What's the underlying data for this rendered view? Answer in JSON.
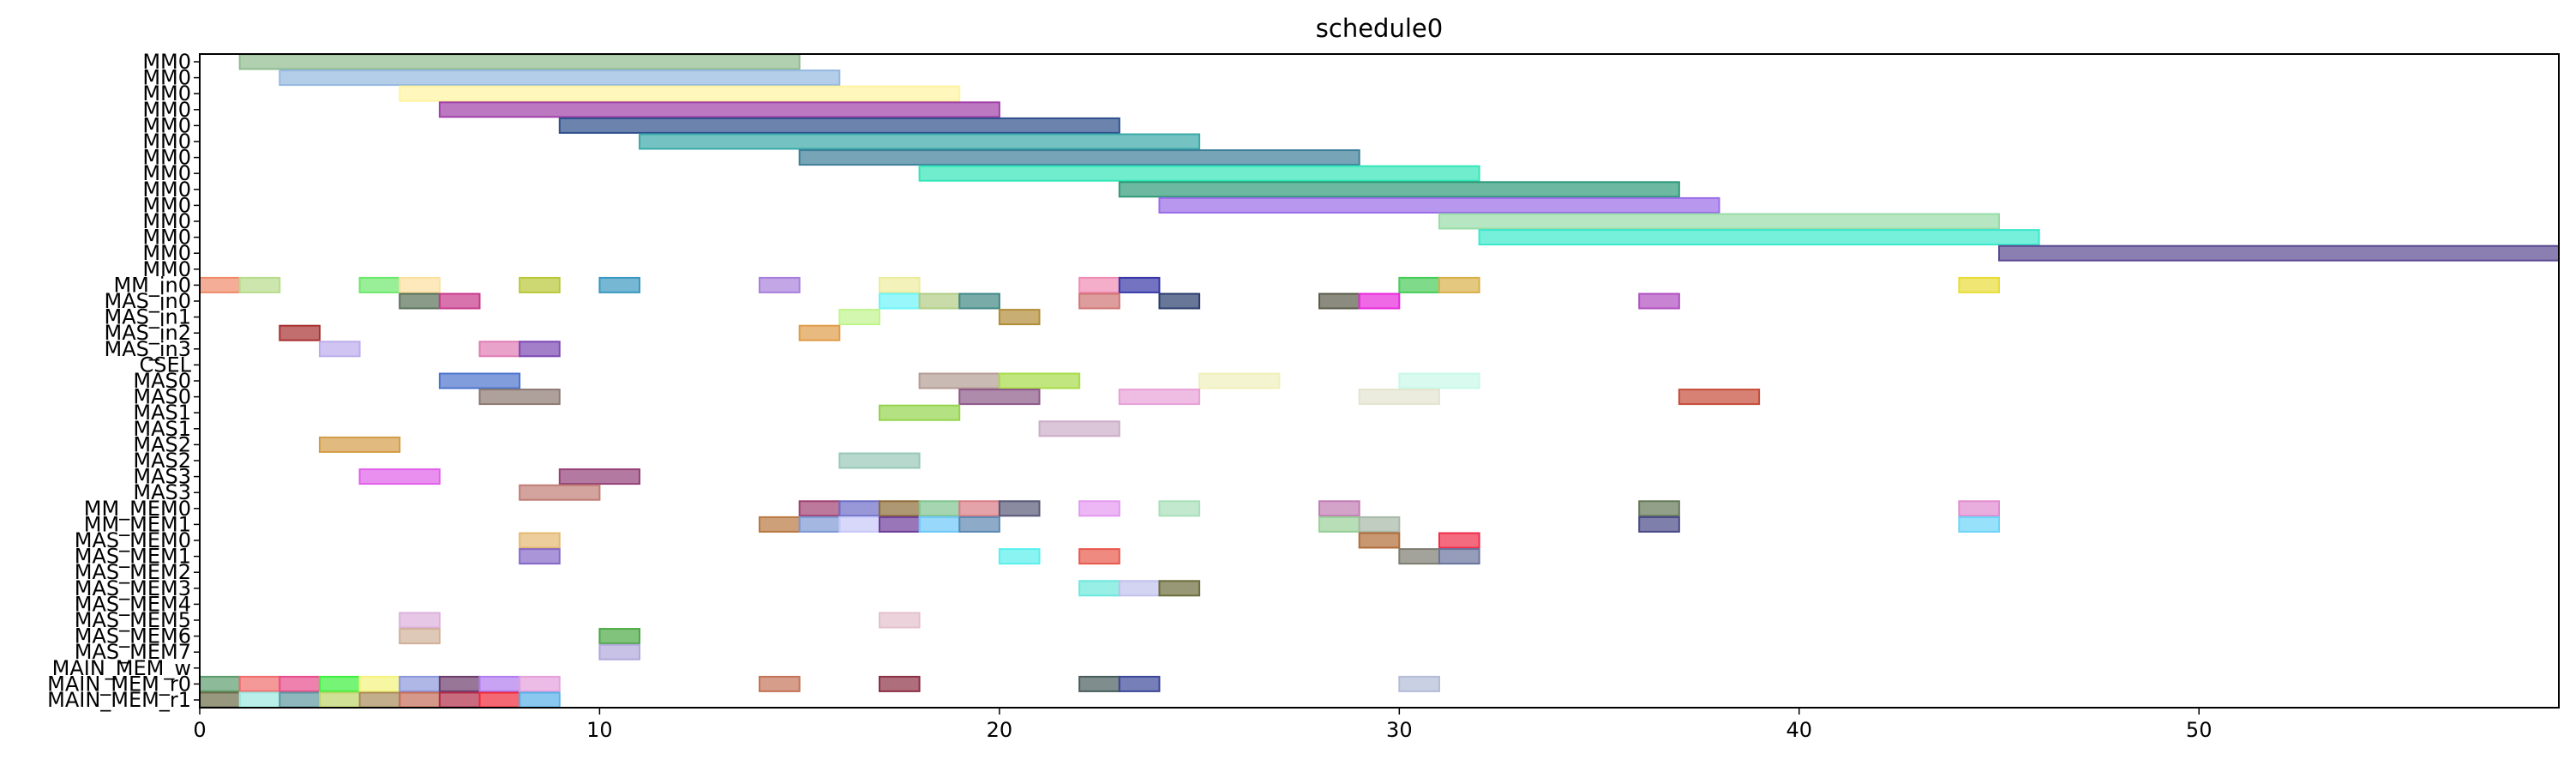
{
  "chart_data": {
    "type": "gantt",
    "title": "schedule0",
    "xlabel": "",
    "ylabel": "",
    "xlim": [
      0,
      59
    ],
    "xticks": [
      0,
      10,
      20,
      30,
      40,
      50
    ],
    "grid": false,
    "rows": [
      "MM0",
      "MM0",
      "MM0",
      "MM0",
      "MM0",
      "MM0",
      "MM0",
      "MM0",
      "MM0",
      "MM0",
      "MM0",
      "MM0",
      "MM0",
      "MM0",
      "MM_in0",
      "MAS_in0",
      "MAS_in1",
      "MAS_in2",
      "MAS_in3",
      "CSEL",
      "MAS0",
      "MAS0",
      "MAS1",
      "MAS1",
      "MAS2",
      "MAS2",
      "MAS3",
      "MAS3",
      "MM_MEM0",
      "MM_MEM1",
      "MAS_MEM0",
      "MAS_MEM1",
      "MAS_MEM2",
      "MAS_MEM3",
      "MAS_MEM4",
      "MAS_MEM5",
      "MAS_MEM6",
      "MAS_MEM7",
      "MAIN_MEM_w",
      "MAIN_MEM_r0",
      "MAIN_MEM_r1"
    ],
    "bars": [
      {
        "row": 0,
        "start": 1,
        "end": 15,
        "color": "#8fbc8f"
      },
      {
        "row": 1,
        "start": 2,
        "end": 16,
        "color": "#94b8e0"
      },
      {
        "row": 2,
        "start": 5,
        "end": 19,
        "color": "#fff3a0"
      },
      {
        "row": 3,
        "start": 6,
        "end": 20,
        "color": "#a040a8"
      },
      {
        "row": 4,
        "start": 9,
        "end": 23,
        "color": "#2d4f8c"
      },
      {
        "row": 5,
        "start": 11,
        "end": 25,
        "color": "#3aa8a8"
      },
      {
        "row": 6,
        "start": 15,
        "end": 29,
        "color": "#3d7f98"
      },
      {
        "row": 7,
        "start": 18,
        "end": 32,
        "color": "#33e6b8"
      },
      {
        "row": 8,
        "start": 23,
        "end": 37,
        "color": "#2e9a78"
      },
      {
        "row": 9,
        "start": 24,
        "end": 38,
        "color": "#9a6ce8"
      },
      {
        "row": 10,
        "start": 31,
        "end": 45,
        "color": "#98dca8"
      },
      {
        "row": 11,
        "start": 32,
        "end": 46,
        "color": "#3ce8cc"
      },
      {
        "row": 12,
        "start": 45,
        "end": 59,
        "color": "#5a4890"
      },
      {
        "row": 14,
        "start": 0,
        "end": 1,
        "color": "#f08a6a"
      },
      {
        "row": 14,
        "start": 1,
        "end": 2,
        "color": "#b8dc8c"
      },
      {
        "row": 14,
        "start": 4,
        "end": 5,
        "color": "#6ce86c"
      },
      {
        "row": 14,
        "start": 5,
        "end": 6,
        "color": "#fce0a0"
      },
      {
        "row": 14,
        "start": 8,
        "end": 9,
        "color": "#b8c838"
      },
      {
        "row": 14,
        "start": 10,
        "end": 11,
        "color": "#3c98c0"
      },
      {
        "row": 14,
        "start": 14,
        "end": 15,
        "color": "#a880dc"
      },
      {
        "row": 14,
        "start": 17,
        "end": 18,
        "color": "#ecec9c"
      },
      {
        "row": 14,
        "start": 22,
        "end": 23,
        "color": "#f08cb4"
      },
      {
        "row": 14,
        "start": 23,
        "end": 24,
        "color": "#3838a8"
      },
      {
        "row": 14,
        "start": 30,
        "end": 31,
        "color": "#48cc58"
      },
      {
        "row": 14,
        "start": 31,
        "end": 32,
        "color": "#d8b048"
      },
      {
        "row": 14,
        "start": 44,
        "end": 45,
        "color": "#e8dc38"
      },
      {
        "row": 15,
        "start": 5,
        "end": 6,
        "color": "#587058"
      },
      {
        "row": 15,
        "start": 6,
        "end": 7,
        "color": "#c8388c"
      },
      {
        "row": 15,
        "start": 17,
        "end": 18,
        "color": "#6cf4f8"
      },
      {
        "row": 15,
        "start": 18,
        "end": 19,
        "color": "#b0cc84"
      },
      {
        "row": 15,
        "start": 19,
        "end": 20,
        "color": "#408884"
      },
      {
        "row": 15,
        "start": 22,
        "end": 23,
        "color": "#d07474"
      },
      {
        "row": 15,
        "start": 24,
        "end": 25,
        "color": "#283c6c"
      },
      {
        "row": 15,
        "start": 28,
        "end": 29,
        "color": "#5a5a48"
      },
      {
        "row": 15,
        "start": 29,
        "end": 30,
        "color": "#e828dc"
      },
      {
        "row": 15,
        "start": 36,
        "end": 37,
        "color": "#b050c0"
      },
      {
        "row": 16,
        "start": 16,
        "end": 17,
        "color": "#c0f48c"
      },
      {
        "row": 16,
        "start": 20,
        "end": 21,
        "color": "#b08c38"
      },
      {
        "row": 17,
        "start": 2,
        "end": 3,
        "color": "#a83030"
      },
      {
        "row": 17,
        "start": 15,
        "end": 16,
        "color": "#e09c48"
      },
      {
        "row": 18,
        "start": 3,
        "end": 4,
        "color": "#bcacec"
      },
      {
        "row": 18,
        "start": 7,
        "end": 8,
        "color": "#e07cb4"
      },
      {
        "row": 18,
        "start": 8,
        "end": 9,
        "color": "#7c48b4"
      },
      {
        "row": 20,
        "start": 6,
        "end": 8,
        "color": "#4c74cc"
      },
      {
        "row": 20,
        "start": 18,
        "end": 20,
        "color": "#b49c94"
      },
      {
        "row": 20,
        "start": 20,
        "end": 22,
        "color": "#a8dc48"
      },
      {
        "row": 20,
        "start": 25,
        "end": 27,
        "color": "#f0f0bc"
      },
      {
        "row": 20,
        "start": 30,
        "end": 32,
        "color": "#c8f8e8"
      },
      {
        "row": 21,
        "start": 7,
        "end": 9,
        "color": "#8c7870"
      },
      {
        "row": 21,
        "start": 19,
        "end": 21,
        "color": "#8c5888"
      },
      {
        "row": 21,
        "start": 23,
        "end": 25,
        "color": "#e8a0d8"
      },
      {
        "row": 21,
        "start": 29,
        "end": 31,
        "color": "#e4e4d0"
      },
      {
        "row": 21,
        "start": 37,
        "end": 39,
        "color": "#c44c38"
      },
      {
        "row": 22,
        "start": 17,
        "end": 19,
        "color": "#94d44c"
      },
      {
        "row": 23,
        "start": 21,
        "end": 23,
        "color": "#ccacc8"
      },
      {
        "row": 24,
        "start": 3,
        "end": 5,
        "color": "#d49c48"
      },
      {
        "row": 25,
        "start": 16,
        "end": 18,
        "color": "#98c8b8"
      },
      {
        "row": 26,
        "start": 4,
        "end": 6,
        "color": "#e060e8"
      },
      {
        "row": 26,
        "start": 9,
        "end": 11,
        "color": "#944078"
      },
      {
        "row": 27,
        "start": 8,
        "end": 10,
        "color": "#c07c74"
      },
      {
        "row": 28,
        "start": 15,
        "end": 16,
        "color": "#a04070"
      },
      {
        "row": 28,
        "start": 16,
        "end": 17,
        "color": "#6c6cc8"
      },
      {
        "row": 28,
        "start": 17,
        "end": 18,
        "color": "#8c6c38"
      },
      {
        "row": 28,
        "start": 18,
        "end": 19,
        "color": "#80c490"
      },
      {
        "row": 28,
        "start": 19,
        "end": 20,
        "color": "#d87c84"
      },
      {
        "row": 28,
        "start": 20,
        "end": 21,
        "color": "#585878"
      },
      {
        "row": 28,
        "start": 22,
        "end": 23,
        "color": "#e498f0"
      },
      {
        "row": 28,
        "start": 24,
        "end": 25,
        "color": "#a8e0b8"
      },
      {
        "row": 28,
        "start": 28,
        "end": 29,
        "color": "#c07cb4"
      },
      {
        "row": 28,
        "start": 36,
        "end": 37,
        "color": "#647858"
      },
      {
        "row": 28,
        "start": 44,
        "end": 45,
        "color": "#e08cd0"
      },
      {
        "row": 29,
        "start": 14,
        "end": 15,
        "color": "#b87840"
      },
      {
        "row": 29,
        "start": 15,
        "end": 16,
        "color": "#7c98d4"
      },
      {
        "row": 29,
        "start": 16,
        "end": 17,
        "color": "#c8c8f8"
      },
      {
        "row": 29,
        "start": 17,
        "end": 18,
        "color": "#6c3c98"
      },
      {
        "row": 29,
        "start": 18,
        "end": 19,
        "color": "#6cc8f8"
      },
      {
        "row": 29,
        "start": 19,
        "end": 20,
        "color": "#5c88b0"
      },
      {
        "row": 29,
        "start": 28,
        "end": 29,
        "color": "#98d098"
      },
      {
        "row": 29,
        "start": 29,
        "end": 30,
        "color": "#a8b8a8"
      },
      {
        "row": 29,
        "start": 36,
        "end": 37,
        "color": "#484888"
      },
      {
        "row": 29,
        "start": 44,
        "end": 45,
        "color": "#6cd4f8"
      },
      {
        "row": 30,
        "start": 8,
        "end": 9,
        "color": "#e4b870"
      },
      {
        "row": 30,
        "start": 29,
        "end": 30,
        "color": "#b06c38"
      },
      {
        "row": 30,
        "start": 31,
        "end": 32,
        "color": "#f02c48"
      },
      {
        "row": 31,
        "start": 8,
        "end": 9,
        "color": "#8468c8"
      },
      {
        "row": 31,
        "start": 20,
        "end": 21,
        "color": "#58f0ec"
      },
      {
        "row": 31,
        "start": 22,
        "end": 23,
        "color": "#e8584c"
      },
      {
        "row": 31,
        "start": 30,
        "end": 31,
        "color": "#7c7c70"
      },
      {
        "row": 31,
        "start": 31,
        "end": 32,
        "color": "#68749c"
      },
      {
        "row": 33,
        "start": 22,
        "end": 23,
        "color": "#6ce8dc"
      },
      {
        "row": 33,
        "start": 23,
        "end": 24,
        "color": "#c0c0ec"
      },
      {
        "row": 33,
        "start": 24,
        "end": 25,
        "color": "#6c6c3c"
      },
      {
        "row": 35,
        "start": 5,
        "end": 6,
        "color": "#dcb0dc"
      },
      {
        "row": 35,
        "start": 17,
        "end": 18,
        "color": "#e4c0cc"
      },
      {
        "row": 36,
        "start": 5,
        "end": 6,
        "color": "#d0b098"
      },
      {
        "row": 36,
        "start": 10,
        "end": 11,
        "color": "#4ca844"
      },
      {
        "row": 37,
        "start": 10,
        "end": 11,
        "color": "#b0a8dc"
      },
      {
        "row": 39,
        "start": 0,
        "end": 1,
        "color": "#5c9c6c"
      },
      {
        "row": 39,
        "start": 1,
        "end": 2,
        "color": "#f06c6c"
      },
      {
        "row": 39,
        "start": 2,
        "end": 3,
        "color": "#e84c8c"
      },
      {
        "row": 39,
        "start": 3,
        "end": 4,
        "color": "#3cf03c"
      },
      {
        "row": 39,
        "start": 4,
        "end": 5,
        "color": "#f4f47c"
      },
      {
        "row": 39,
        "start": 5,
        "end": 6,
        "color": "#8c98dc"
      },
      {
        "row": 39,
        "start": 6,
        "end": 7,
        "color": "#6c3c6c"
      },
      {
        "row": 39,
        "start": 7,
        "end": 8,
        "color": "#b07cf0"
      },
      {
        "row": 39,
        "start": 8,
        "end": 9,
        "color": "#e4a0dc"
      },
      {
        "row": 39,
        "start": 14,
        "end": 15,
        "color": "#c47458"
      },
      {
        "row": 39,
        "start": 17,
        "end": 18,
        "color": "#8c3044"
      },
      {
        "row": 39,
        "start": 22,
        "end": 23,
        "color": "#485c5c"
      },
      {
        "row": 39,
        "start": 23,
        "end": 24,
        "color": "#3c4898"
      },
      {
        "row": 39,
        "start": 30,
        "end": 31,
        "color": "#b4bcd8"
      },
      {
        "row": 40,
        "start": 0,
        "end": 1,
        "color": "#6c6c48"
      },
      {
        "row": 40,
        "start": 1,
        "end": 2,
        "color": "#9ce8e0"
      },
      {
        "row": 40,
        "start": 2,
        "end": 3,
        "color": "#5c98a0"
      },
      {
        "row": 40,
        "start": 3,
        "end": 4,
        "color": "#bcd468"
      },
      {
        "row": 40,
        "start": 4,
        "end": 5,
        "color": "#a88c58"
      },
      {
        "row": 40,
        "start": 5,
        "end": 6,
        "color": "#c46c58"
      },
      {
        "row": 40,
        "start": 6,
        "end": 7,
        "color": "#b02c48"
      },
      {
        "row": 40,
        "start": 7,
        "end": 8,
        "color": "#f02838"
      },
      {
        "row": 40,
        "start": 8,
        "end": 9,
        "color": "#58b0e8"
      }
    ]
  }
}
